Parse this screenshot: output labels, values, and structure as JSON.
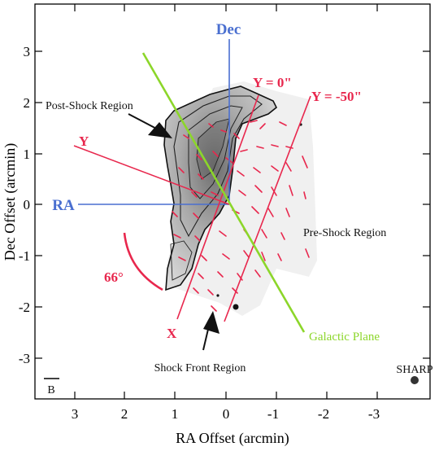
{
  "axes": {
    "xlabel": "RA Offset (arcmin)",
    "ylabel": "Dec Offset (arcmin)",
    "xticks": [
      "3",
      "2",
      "1",
      "0",
      "-1",
      "-2",
      "-3"
    ],
    "yticks": [
      "3",
      "2",
      "1",
      "0",
      "-1",
      "-2",
      "-3"
    ],
    "xlim": [
      3.7,
      -3.9
    ],
    "ylim": [
      -3.7,
      3.8
    ]
  },
  "labels": {
    "post_shock": "Post-Shock Region",
    "pre_shock": "Pre-Shock Region",
    "shock_front": "Shock Front Region",
    "galactic_plane": "Galactic Plane",
    "y0": "Y = 0\"",
    "y50": "Y = -50\"",
    "y_axis_label": "Y",
    "x_axis_label": "X",
    "angle": "66°",
    "dec_axis": "Dec",
    "ra_axis": "RA",
    "instrument": "SHARP",
    "beam": "B"
  },
  "colors": {
    "red": "#e8274d",
    "blue": "#4a6fd0",
    "green": "#8cd62a"
  }
}
